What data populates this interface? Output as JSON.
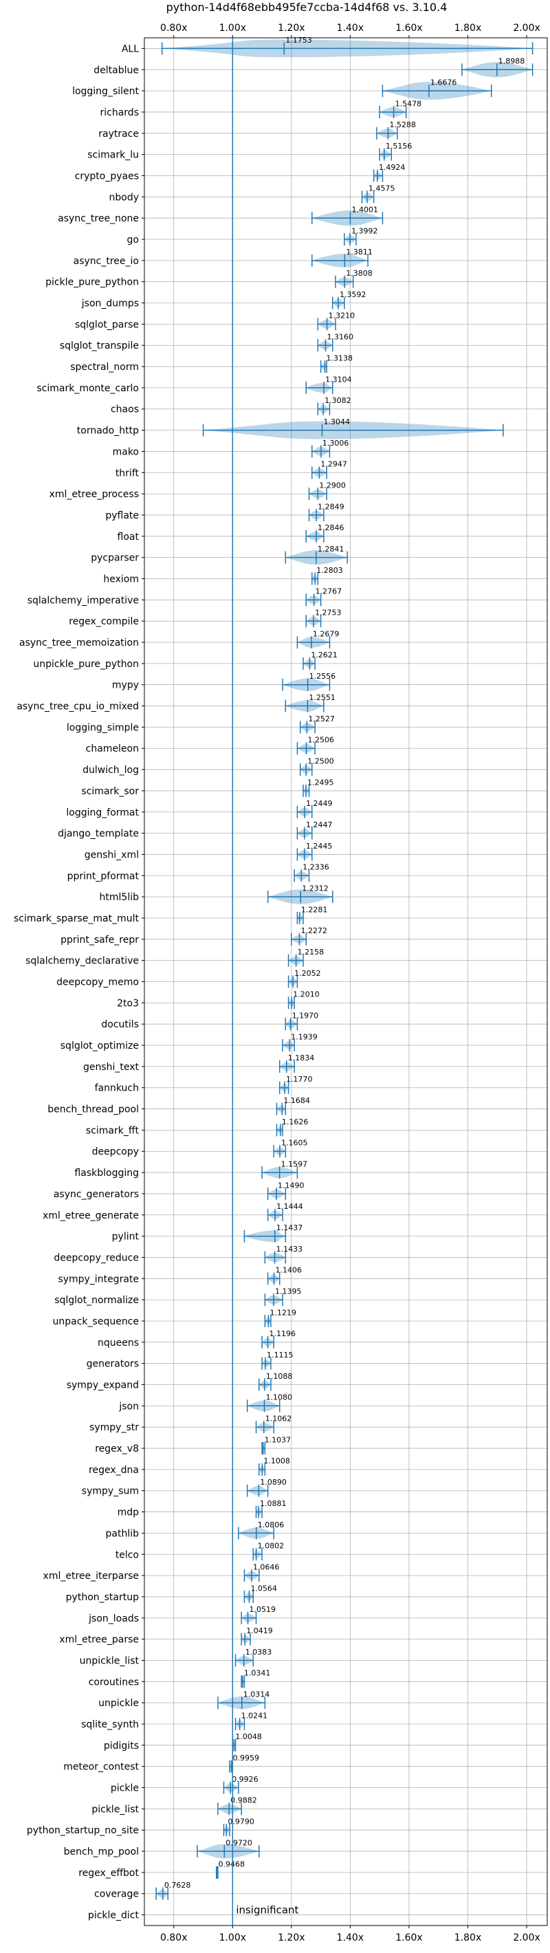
{
  "chart_data": {
    "type": "violin",
    "title": "python-14d4f68ebb495fe7ccba-14d4f68 vs. 3.10.4",
    "xlim": [
      0.7,
      2.07
    ],
    "xticks": [
      0.8,
      1.0,
      1.2,
      1.4,
      1.6,
      1.8,
      2.0
    ],
    "xtick_labels": [
      "0.80x",
      "1.00x",
      "1.20x",
      "1.40x",
      "1.60x",
      "1.80x",
      "2.00x"
    ],
    "tick_axes": [
      "top",
      "bottom"
    ],
    "grid": true,
    "reference_line": 1.0,
    "annotation": "insignificant",
    "series_color": "#1f77b4",
    "benchmarks": [
      {
        "name": "ALL",
        "value": 1.1753,
        "label": "1.1753",
        "min": 0.76,
        "max": 2.02
      },
      {
        "name": "deltablue",
        "value": 1.8988,
        "label": "1.8988",
        "min": 1.78,
        "max": 2.02
      },
      {
        "name": "logging_silent",
        "value": 1.6676,
        "label": "1.6676",
        "min": 1.51,
        "max": 1.88
      },
      {
        "name": "richards",
        "value": 1.5478,
        "label": "1.5478",
        "min": 1.5,
        "max": 1.59
      },
      {
        "name": "raytrace",
        "value": 1.5288,
        "label": "1.5288",
        "min": 1.49,
        "max": 1.56
      },
      {
        "name": "scimark_lu",
        "value": 1.5156,
        "label": "1.5156",
        "min": 1.5,
        "max": 1.54
      },
      {
        "name": "crypto_pyaes",
        "value": 1.4924,
        "label": "1.4924",
        "min": 1.48,
        "max": 1.51
      },
      {
        "name": "nbody",
        "value": 1.4575,
        "label": "1.4575",
        "min": 1.44,
        "max": 1.48
      },
      {
        "name": "async_tree_none",
        "value": 1.4001,
        "label": "1.4001",
        "min": 1.27,
        "max": 1.51
      },
      {
        "name": "go",
        "value": 1.3992,
        "label": "1.3992",
        "min": 1.38,
        "max": 1.42
      },
      {
        "name": "async_tree_io",
        "value": 1.3811,
        "label": "1.3811",
        "min": 1.27,
        "max": 1.46
      },
      {
        "name": "pickle_pure_python",
        "value": 1.3808,
        "label": "1.3808",
        "min": 1.35,
        "max": 1.41
      },
      {
        "name": "json_dumps",
        "value": 1.3592,
        "label": "1.3592",
        "min": 1.34,
        "max": 1.38
      },
      {
        "name": "sqlglot_parse",
        "value": 1.321,
        "label": "1.3210",
        "min": 1.29,
        "max": 1.35
      },
      {
        "name": "sqlglot_transpile",
        "value": 1.316,
        "label": "1.3160",
        "min": 1.29,
        "max": 1.34
      },
      {
        "name": "spectral_norm",
        "value": 1.3138,
        "label": "1.3138",
        "min": 1.3,
        "max": 1.32
      },
      {
        "name": "scimark_monte_carlo",
        "value": 1.3104,
        "label": "1.3104",
        "min": 1.25,
        "max": 1.34
      },
      {
        "name": "chaos",
        "value": 1.3082,
        "label": "1.3082",
        "min": 1.29,
        "max": 1.33
      },
      {
        "name": "tornado_http",
        "value": 1.3044,
        "label": "1.3044",
        "min": 0.9,
        "max": 1.92
      },
      {
        "name": "mako",
        "value": 1.3006,
        "label": "1.3006",
        "min": 1.27,
        "max": 1.33
      },
      {
        "name": "thrift",
        "value": 1.2947,
        "label": "1.2947",
        "min": 1.27,
        "max": 1.32
      },
      {
        "name": "xml_etree_process",
        "value": 1.29,
        "label": "1.2900",
        "min": 1.26,
        "max": 1.32
      },
      {
        "name": "pyflate",
        "value": 1.2849,
        "label": "1.2849",
        "min": 1.26,
        "max": 1.31
      },
      {
        "name": "float",
        "value": 1.2846,
        "label": "1.2846",
        "min": 1.25,
        "max": 1.31
      },
      {
        "name": "pycparser",
        "value": 1.2841,
        "label": "1.2841",
        "min": 1.18,
        "max": 1.39
      },
      {
        "name": "hexiom",
        "value": 1.2803,
        "label": "1.2803",
        "min": 1.27,
        "max": 1.29
      },
      {
        "name": "sqlalchemy_imperative",
        "value": 1.2767,
        "label": "1.2767",
        "min": 1.25,
        "max": 1.3
      },
      {
        "name": "regex_compile",
        "value": 1.2753,
        "label": "1.2753",
        "min": 1.25,
        "max": 1.3
      },
      {
        "name": "async_tree_memoization",
        "value": 1.2679,
        "label": "1.2679",
        "min": 1.22,
        "max": 1.33
      },
      {
        "name": "unpickle_pure_python",
        "value": 1.2621,
        "label": "1.2621",
        "min": 1.24,
        "max": 1.28
      },
      {
        "name": "mypy",
        "value": 1.2556,
        "label": "1.2556",
        "min": 1.17,
        "max": 1.33
      },
      {
        "name": "async_tree_cpu_io_mixed",
        "value": 1.2551,
        "label": "1.2551",
        "min": 1.18,
        "max": 1.31
      },
      {
        "name": "logging_simple",
        "value": 1.2527,
        "label": "1.2527",
        "min": 1.23,
        "max": 1.28
      },
      {
        "name": "chameleon",
        "value": 1.2506,
        "label": "1.2506",
        "min": 1.22,
        "max": 1.28
      },
      {
        "name": "dulwich_log",
        "value": 1.25,
        "label": "1.2500",
        "min": 1.23,
        "max": 1.27
      },
      {
        "name": "scimark_sor",
        "value": 1.2495,
        "label": "1.2495",
        "min": 1.24,
        "max": 1.26
      },
      {
        "name": "logging_format",
        "value": 1.2449,
        "label": "1.2449",
        "min": 1.22,
        "max": 1.27
      },
      {
        "name": "django_template",
        "value": 1.2447,
        "label": "1.2447",
        "min": 1.22,
        "max": 1.27
      },
      {
        "name": "genshi_xml",
        "value": 1.2445,
        "label": "1.2445",
        "min": 1.22,
        "max": 1.27
      },
      {
        "name": "pprint_pformat",
        "value": 1.2336,
        "label": "1.2336",
        "min": 1.21,
        "max": 1.26
      },
      {
        "name": "html5lib",
        "value": 1.2312,
        "label": "1.2312",
        "min": 1.12,
        "max": 1.34
      },
      {
        "name": "scimark_sparse_mat_mult",
        "value": 1.2281,
        "label": "1.2281",
        "min": 1.22,
        "max": 1.24
      },
      {
        "name": "pprint_safe_repr",
        "value": 1.2272,
        "label": "1.2272",
        "min": 1.2,
        "max": 1.25
      },
      {
        "name": "sqlalchemy_declarative",
        "value": 1.2158,
        "label": "1.2158",
        "min": 1.19,
        "max": 1.24
      },
      {
        "name": "deepcopy_memo",
        "value": 1.2052,
        "label": "1.2052",
        "min": 1.19,
        "max": 1.22
      },
      {
        "name": "2to3",
        "value": 1.201,
        "label": "1.2010",
        "min": 1.19,
        "max": 1.21
      },
      {
        "name": "docutils",
        "value": 1.197,
        "label": "1.1970",
        "min": 1.18,
        "max": 1.22
      },
      {
        "name": "sqlglot_optimize",
        "value": 1.1939,
        "label": "1.1939",
        "min": 1.17,
        "max": 1.21
      },
      {
        "name": "genshi_text",
        "value": 1.1834,
        "label": "1.1834",
        "min": 1.16,
        "max": 1.21
      },
      {
        "name": "fannkuch",
        "value": 1.177,
        "label": "1.1770",
        "min": 1.16,
        "max": 1.19
      },
      {
        "name": "bench_thread_pool",
        "value": 1.1684,
        "label": "1.1684",
        "min": 1.15,
        "max": 1.18
      },
      {
        "name": "scimark_fft",
        "value": 1.1626,
        "label": "1.1626",
        "min": 1.15,
        "max": 1.17
      },
      {
        "name": "deepcopy",
        "value": 1.1605,
        "label": "1.1605",
        "min": 1.14,
        "max": 1.18
      },
      {
        "name": "flaskblogging",
        "value": 1.1597,
        "label": "1.1597",
        "min": 1.1,
        "max": 1.22
      },
      {
        "name": "async_generators",
        "value": 1.149,
        "label": "1.1490",
        "min": 1.12,
        "max": 1.18
      },
      {
        "name": "xml_etree_generate",
        "value": 1.1444,
        "label": "1.1444",
        "min": 1.12,
        "max": 1.17
      },
      {
        "name": "pylint",
        "value": 1.1437,
        "label": "1.1437",
        "min": 1.04,
        "max": 1.18
      },
      {
        "name": "deepcopy_reduce",
        "value": 1.1433,
        "label": "1.1433",
        "min": 1.11,
        "max": 1.18
      },
      {
        "name": "sympy_integrate",
        "value": 1.1406,
        "label": "1.1406",
        "min": 1.12,
        "max": 1.16
      },
      {
        "name": "sqlglot_normalize",
        "value": 1.1395,
        "label": "1.1395",
        "min": 1.11,
        "max": 1.17
      },
      {
        "name": "unpack_sequence",
        "value": 1.1219,
        "label": "1.1219",
        "min": 1.11,
        "max": 1.13
      },
      {
        "name": "nqueens",
        "value": 1.1196,
        "label": "1.1196",
        "min": 1.1,
        "max": 1.14
      },
      {
        "name": "generators",
        "value": 1.1115,
        "label": "1.1115",
        "min": 1.1,
        "max": 1.13
      },
      {
        "name": "sympy_expand",
        "value": 1.1088,
        "label": "1.1088",
        "min": 1.09,
        "max": 1.13
      },
      {
        "name": "json",
        "value": 1.108,
        "label": "1.1080",
        "min": 1.05,
        "max": 1.16
      },
      {
        "name": "sympy_str",
        "value": 1.1062,
        "label": "1.1062",
        "min": 1.08,
        "max": 1.14
      },
      {
        "name": "regex_v8",
        "value": 1.1037,
        "label": "1.1037",
        "min": 1.1,
        "max": 1.11
      },
      {
        "name": "regex_dna",
        "value": 1.1008,
        "label": "1.1008",
        "min": 1.09,
        "max": 1.11
      },
      {
        "name": "sympy_sum",
        "value": 1.089,
        "label": "1.0890",
        "min": 1.05,
        "max": 1.12
      },
      {
        "name": "mdp",
        "value": 1.0881,
        "label": "1.0881",
        "min": 1.08,
        "max": 1.1
      },
      {
        "name": "pathlib",
        "value": 1.0806,
        "label": "1.0806",
        "min": 1.02,
        "max": 1.14
      },
      {
        "name": "telco",
        "value": 1.0802,
        "label": "1.0802",
        "min": 1.07,
        "max": 1.1
      },
      {
        "name": "xml_etree_iterparse",
        "value": 1.0646,
        "label": "1.0646",
        "min": 1.04,
        "max": 1.09
      },
      {
        "name": "python_startup",
        "value": 1.0564,
        "label": "1.0564",
        "min": 1.04,
        "max": 1.07
      },
      {
        "name": "json_loads",
        "value": 1.0519,
        "label": "1.0519",
        "min": 1.03,
        "max": 1.08
      },
      {
        "name": "xml_etree_parse",
        "value": 1.0419,
        "label": "1.0419",
        "min": 1.03,
        "max": 1.06
      },
      {
        "name": "unpickle_list",
        "value": 1.0383,
        "label": "1.0383",
        "min": 1.01,
        "max": 1.07
      },
      {
        "name": "coroutines",
        "value": 1.0341,
        "label": "1.0341",
        "min": 1.03,
        "max": 1.04
      },
      {
        "name": "unpickle",
        "value": 1.0314,
        "label": "1.0314",
        "min": 0.95,
        "max": 1.11
      },
      {
        "name": "sqlite_synth",
        "value": 1.0241,
        "label": "1.0241",
        "min": 1.01,
        "max": 1.04
      },
      {
        "name": "pidigits",
        "value": 1.0048,
        "label": "1.0048",
        "min": 1.0,
        "max": 1.01
      },
      {
        "name": "meteor_contest",
        "value": 0.9959,
        "label": "0.9959",
        "min": 0.99,
        "max": 1.0
      },
      {
        "name": "pickle",
        "value": 0.9926,
        "label": "0.9926",
        "min": 0.97,
        "max": 1.02
      },
      {
        "name": "pickle_list",
        "value": 0.9882,
        "label": "0.9882",
        "min": 0.95,
        "max": 1.03
      },
      {
        "name": "python_startup_no_site",
        "value": 0.979,
        "label": "0.9790",
        "min": 0.97,
        "max": 0.99
      },
      {
        "name": "bench_mp_pool",
        "value": 0.972,
        "label": "0.9720",
        "min": 0.88,
        "max": 1.09
      },
      {
        "name": "regex_effbot",
        "value": 0.9468,
        "label": "0.9468",
        "min": 0.945,
        "max": 0.95
      },
      {
        "name": "coverage",
        "value": 0.7628,
        "label": "0.7628",
        "min": 0.74,
        "max": 0.78
      },
      {
        "name": "pickle_dict",
        "value": null,
        "label": "",
        "min": null,
        "max": null
      }
    ]
  }
}
